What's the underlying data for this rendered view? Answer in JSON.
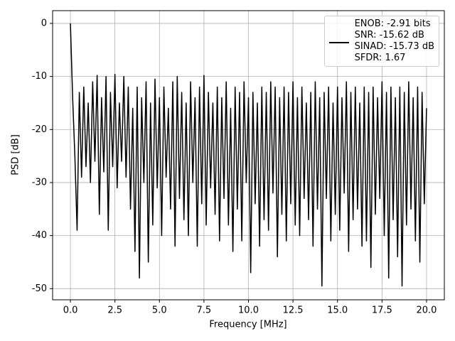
{
  "chart_data": {
    "type": "line",
    "xlabel": "Frequency [MHz]",
    "ylabel": "PSD [dB]",
    "xlim": [
      -1.0,
      21.0
    ],
    "ylim": [
      -52.1,
      2.4
    ],
    "xticks": [
      {
        "value": 0,
        "label": "0.0"
      },
      {
        "value": 2.5,
        "label": "2.5"
      },
      {
        "value": 5,
        "label": "5.0"
      },
      {
        "value": 7.5,
        "label": "7.5"
      },
      {
        "value": 10,
        "label": "10.0"
      },
      {
        "value": 12.5,
        "label": "12.5"
      },
      {
        "value": 15,
        "label": "15.0"
      },
      {
        "value": 17.5,
        "label": "17.5"
      },
      {
        "value": 20,
        "label": "20.0"
      }
    ],
    "yticks": [
      0,
      -10,
      -20,
      -30,
      -40,
      -50
    ],
    "grid": true,
    "legend": "upper right",
    "x": [
      0,
      0.125,
      0.25,
      0.375,
      0.5,
      0.625,
      0.75,
      0.875,
      1,
      1.125,
      1.25,
      1.375,
      1.5,
      1.625,
      1.75,
      1.875,
      2,
      2.125,
      2.25,
      2.375,
      2.5,
      2.625,
      2.75,
      2.875,
      3,
      3.125,
      3.25,
      3.375,
      3.5,
      3.625,
      3.75,
      3.875,
      4,
      4.125,
      4.25,
      4.375,
      4.5,
      4.625,
      4.75,
      4.875,
      5,
      5.125,
      5.25,
      5.375,
      5.5,
      5.625,
      5.75,
      5.875,
      6,
      6.125,
      6.25,
      6.375,
      6.5,
      6.625,
      6.75,
      6.875,
      7,
      7.125,
      7.25,
      7.375,
      7.5,
      7.625,
      7.75,
      7.875,
      8,
      8.125,
      8.25,
      8.375,
      8.5,
      8.625,
      8.75,
      8.875,
      9,
      9.125,
      9.25,
      9.375,
      9.5,
      9.625,
      9.75,
      9.875,
      10,
      10.125,
      10.25,
      10.375,
      10.5,
      10.625,
      10.75,
      10.875,
      11,
      11.125,
      11.25,
      11.375,
      11.5,
      11.625,
      11.75,
      11.875,
      12,
      12.125,
      12.25,
      12.375,
      12.5,
      12.625,
      12.75,
      12.875,
      13,
      13.125,
      13.25,
      13.375,
      13.5,
      13.625,
      13.75,
      13.875,
      14,
      14.125,
      14.25,
      14.375,
      14.5,
      14.625,
      14.75,
      14.875,
      15,
      15.125,
      15.25,
      15.375,
      15.5,
      15.625,
      15.75,
      15.875,
      16,
      16.125,
      16.25,
      16.375,
      16.5,
      16.625,
      16.75,
      16.875,
      17,
      17.125,
      17.25,
      17.375,
      17.5,
      17.625,
      17.75,
      17.875,
      18,
      18.125,
      18.25,
      18.375,
      18.5,
      18.625,
      18.75,
      18.875,
      19,
      19.125,
      19.25,
      19.375,
      19.5,
      19.625,
      19.75,
      19.875,
      20
    ],
    "series": [
      {
        "name": "ENOB: -2.91 bits\nSNR: -15.62 dB\nSINAD: -15.73 dB\nSFDR: 1.67",
        "color": "#000000",
        "values": [
          0,
          -14,
          -25,
          -39,
          -13,
          -29,
          -12,
          -27,
          -15,
          -30,
          -11,
          -26,
          -9.8,
          -36,
          -14,
          -28,
          -10,
          -39,
          -13,
          -27,
          -9.6,
          -31,
          -15,
          -26,
          -10,
          -29,
          -12,
          -35,
          -16,
          -43,
          -12,
          -48,
          -14,
          -30,
          -11,
          -45,
          -15,
          -38,
          -10.5,
          -31,
          -14,
          -40,
          -12,
          -29,
          -16,
          -35,
          -11,
          -42,
          -10,
          -33,
          -13,
          -37,
          -15,
          -40,
          -11,
          -30,
          -14,
          -42,
          -12,
          -34,
          -9.8,
          -38,
          -13,
          -31,
          -15,
          -36,
          -12,
          -41,
          -14,
          -33,
          -11,
          -38,
          -16,
          -43,
          -12,
          -35,
          -13,
          -41,
          -11,
          -30,
          -14,
          -47,
          -13,
          -34,
          -15,
          -42,
          -12,
          -37,
          -13,
          -39,
          -11,
          -32,
          -12,
          -44,
          -14,
          -36,
          -12,
          -41,
          -13,
          -34,
          -11,
          -38,
          -14,
          -40,
          -12,
          -33,
          -15,
          -37,
          -13,
          -42,
          -11,
          -35,
          -14,
          -49.5,
          -13,
          -33,
          -12,
          -41,
          -15,
          -36,
          -12,
          -39,
          -14,
          -32,
          -11,
          -43,
          -13,
          -37,
          -12,
          -35,
          -15,
          -42,
          -12,
          -41,
          -13,
          -46,
          -12,
          -36,
          -14,
          -33,
          -11,
          -40,
          -13,
          -48,
          -12,
          -37,
          -14,
          -44,
          -12,
          -49.5,
          -13,
          -38,
          -11,
          -35,
          -14,
          -41,
          -12,
          -45,
          -13,
          -34,
          -16
        ]
      }
    ]
  }
}
